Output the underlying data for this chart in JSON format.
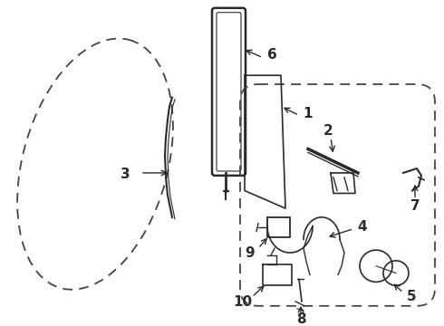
{
  "bg_color": "#ffffff",
  "line_color": "#2a2a2a",
  "dash_color": "#444444",
  "fig_width": 4.9,
  "fig_height": 3.6,
  "dpi": 100
}
